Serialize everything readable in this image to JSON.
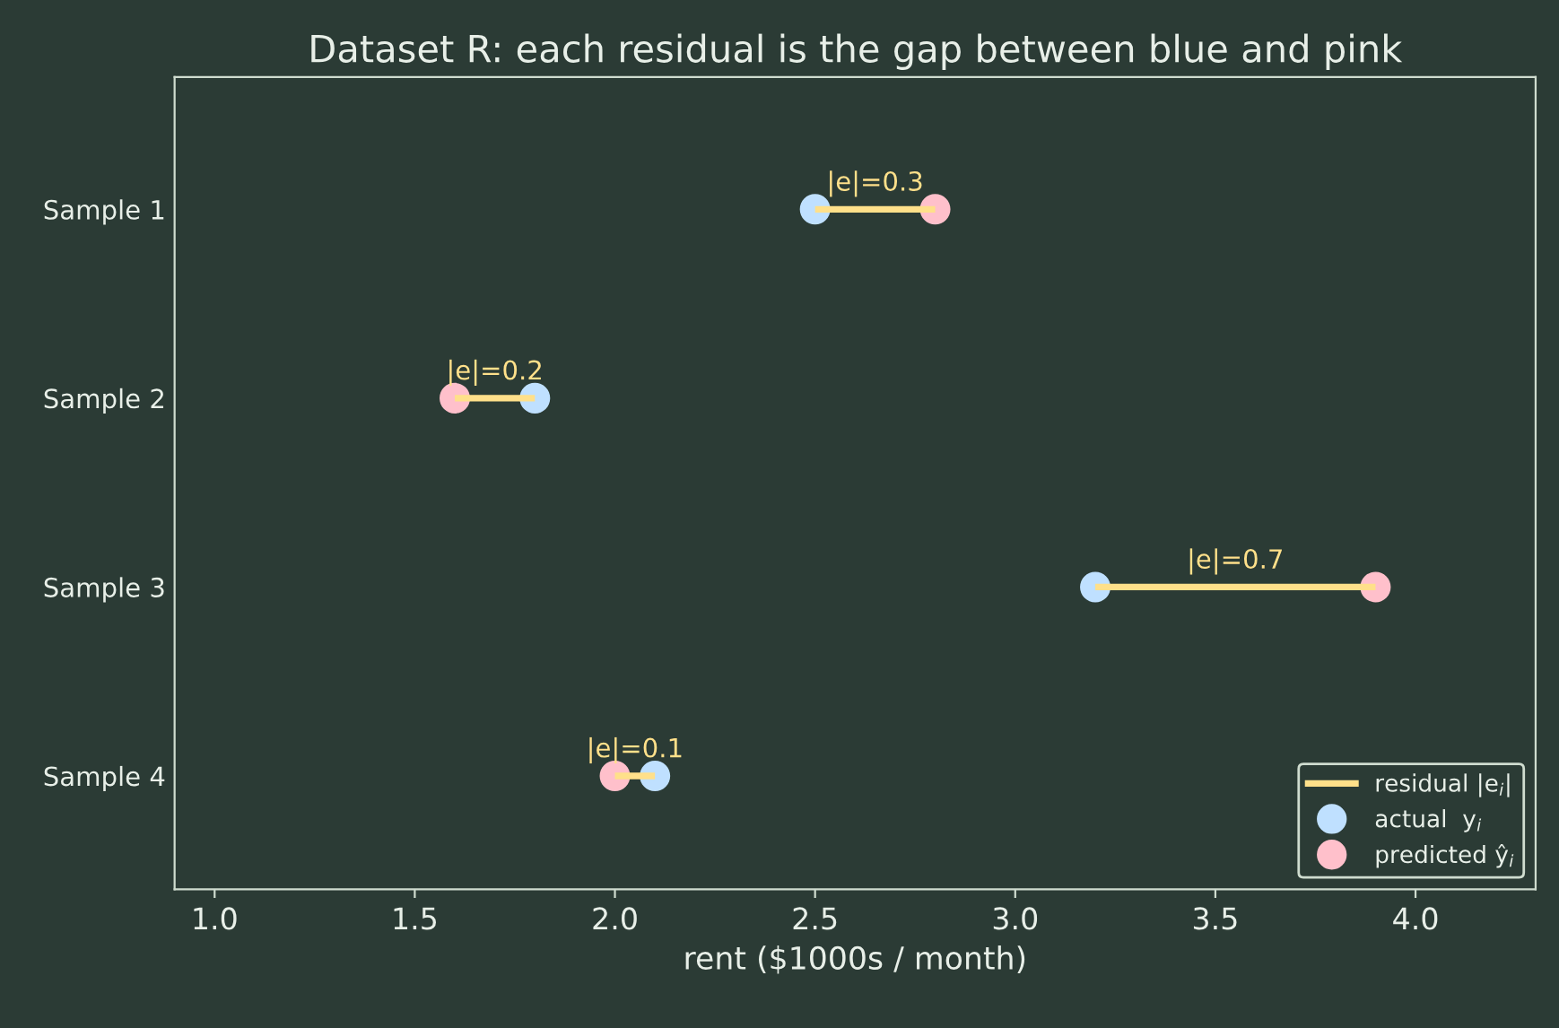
{
  "chart_data": {
    "type": "scatter",
    "title": "Dataset R: each residual is the gap between blue and pink",
    "xlabel": "rent ($1000s / month)",
    "orientation": "horizontal",
    "categories": [
      "Sample 1",
      "Sample 2",
      "Sample 3",
      "Sample 4"
    ],
    "xlim": [
      0.9,
      4.3
    ],
    "xticks": [
      {
        "value": 1.0,
        "label": "1.0"
      },
      {
        "value": 1.5,
        "label": "1.5"
      },
      {
        "value": 2.0,
        "label": "2.0"
      },
      {
        "value": 2.5,
        "label": "2.5"
      },
      {
        "value": 3.0,
        "label": "3.0"
      },
      {
        "value": 3.5,
        "label": "3.5"
      },
      {
        "value": 4.0,
        "label": "4.0"
      }
    ],
    "series": [
      {
        "name": "residual |e$_{i}$|",
        "type": "bar",
        "color": "#ffe08a",
        "base": [
          2.5,
          1.6,
          3.2,
          2.0
        ],
        "values": [
          0.3,
          0.2,
          0.7,
          0.1
        ],
        "value_labels": [
          "|e|=0.3",
          "|e|=0.2",
          "|e|=0.7",
          "|e|=0.1"
        ]
      },
      {
        "name": "actual  y$_{i}$",
        "color": "#bfe0ff",
        "values": [
          2.5,
          1.8,
          3.2,
          2.1
        ]
      },
      {
        "name": "predicted ŷ$_{i}$",
        "color": "#ffc0cb",
        "values": [
          2.8,
          1.6,
          3.9,
          2.0
        ]
      }
    ],
    "marker": "circle",
    "grid": false,
    "legend": "bottom right"
  }
}
